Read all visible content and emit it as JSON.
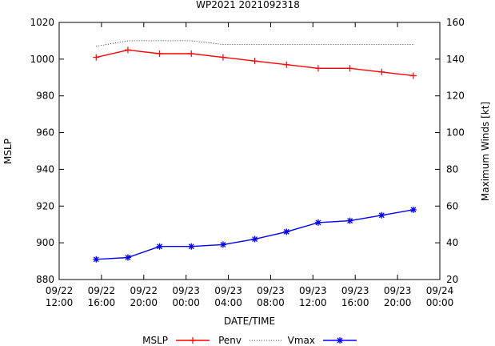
{
  "chart_data": {
    "type": "line",
    "title": "WP2021 2021092318",
    "xlabel": "DATE/TIME",
    "ylabel_left": "MSLP",
    "ylabel_right": "Maximum Winds [kt]",
    "ylim_left": [
      880,
      1020
    ],
    "ylim_right": [
      20,
      160
    ],
    "xlim_hours": [
      0,
      36
    ],
    "x_ticks": [
      {
        "hour": 0,
        "label": [
          "09/22",
          "12:00"
        ]
      },
      {
        "hour": 4,
        "label": [
          "09/22",
          "16:00"
        ]
      },
      {
        "hour": 8,
        "label": [
          "09/22",
          "20:00"
        ]
      },
      {
        "hour": 12,
        "label": [
          "09/23",
          "00:00"
        ]
      },
      {
        "hour": 16,
        "label": [
          "09/23",
          "04:00"
        ]
      },
      {
        "hour": 20,
        "label": [
          "09/23",
          "08:00"
        ]
      },
      {
        "hour": 24,
        "label": [
          "09/23",
          "12:00"
        ]
      },
      {
        "hour": 28,
        "label": [
          "09/23",
          "16:00"
        ]
      },
      {
        "hour": 32,
        "label": [
          "09/23",
          "20:00"
        ]
      },
      {
        "hour": 36,
        "label": [
          "09/24",
          "00:00"
        ]
      }
    ],
    "y_ticks_left": [
      "880",
      "900",
      "920",
      "940",
      "960",
      "980",
      "1000",
      "1020"
    ],
    "y_ticks_right": [
      "20",
      "40",
      "60",
      "80",
      "100",
      "120",
      "140",
      "160"
    ],
    "series": [
      {
        "name": "MSLP",
        "axis": "left",
        "color": "#ff0000",
        "marker": "plus",
        "x_hours": [
          3.5,
          6.5,
          9.5,
          12.5,
          15.5,
          18.5,
          21.5,
          24.5,
          27.5,
          30.5,
          33.5
        ],
        "values": [
          1001,
          1005,
          1003,
          1003,
          1001,
          999,
          997,
          995,
          995,
          993,
          991
        ]
      },
      {
        "name": "Penv",
        "axis": "left",
        "color": "#000000",
        "style": "dotted",
        "x_hours": [
          3.5,
          6.5,
          12.5,
          15.5,
          33.5
        ],
        "values": [
          1007,
          1010,
          1010,
          1008,
          1008
        ]
      },
      {
        "name": "Vmax",
        "axis": "right",
        "color": "#0000ff",
        "marker": "star",
        "x_hours": [
          3.5,
          6.5,
          9.5,
          12.5,
          15.5,
          18.5,
          21.5,
          24.5,
          27.5,
          30.5,
          33.5
        ],
        "values": [
          31,
          32,
          38,
          38,
          39,
          42,
          46,
          51,
          52,
          55,
          58
        ]
      }
    ],
    "legend": [
      "MSLP",
      "Penv",
      "Vmax"
    ],
    "legend_position": "bottom"
  }
}
